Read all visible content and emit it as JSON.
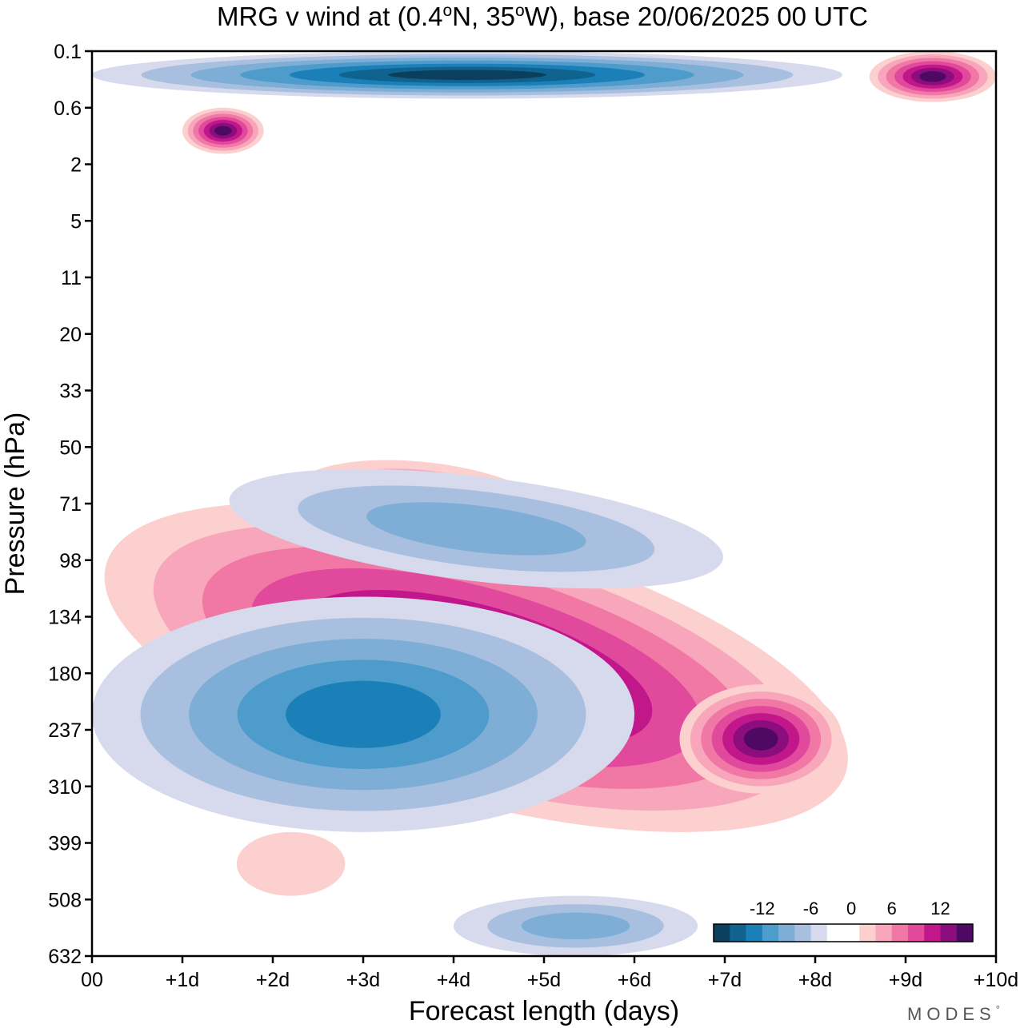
{
  "chart_data": {
    "type": "heatmap",
    "subtype": "filled-contour",
    "title": {
      "prefix": "MRG v wind at (0.4",
      "deg1": "o",
      "mid": "N, 35",
      "deg2": "o",
      "suffix": "W),  base 20/06/2025  00 UTC"
    },
    "xlabel": "Forecast length (days)",
    "ylabel": "Pressure (hPa)",
    "x_ticks": [
      "00",
      "+1d",
      "+2d",
      "+3d",
      "+4d",
      "+5d",
      "+6d",
      "+7d",
      "+8d",
      "+9d",
      "+10d"
    ],
    "x_range_days": [
      0,
      10
    ],
    "y_ticks": [
      "0.1",
      "0.6",
      "2",
      "5",
      "11",
      "20",
      "33",
      "50",
      "71",
      "98",
      "134",
      "180",
      "237",
      "310",
      "399",
      "508",
      "632"
    ],
    "y_scale": "pressure levels, top 0.1 hPa to bottom 632 hPa",
    "grid": false,
    "legend_position": "bottom-right inside plot",
    "colorbar": {
      "tick_labels": [
        "-12",
        "-6",
        "0",
        "6",
        "12"
      ],
      "tick_values": [
        -12,
        -6,
        0,
        6,
        12
      ],
      "levels": [
        -16,
        -14,
        -12,
        -10,
        -8,
        -6,
        -4,
        -2,
        2,
        4,
        6,
        8,
        10,
        12,
        14,
        16
      ],
      "colors": [
        "#0a3f5e",
        "#10628f",
        "#1b80b8",
        "#4d9ccb",
        "#7eaed6",
        "#a8bfdf",
        "#d7d9ec",
        "#ffffff",
        "#ffffff",
        "#fdd0d0",
        "#f8a6bb",
        "#f178a5",
        "#e14a9c",
        "#c2168b",
        "#8c0d7d",
        "#4e0962"
      ]
    },
    "features": [
      {
        "name": "strong positive tilted band",
        "sign": "positive",
        "x_days": [
          0.0,
          8.5
        ],
        "p_hPa": [
          85,
          330
        ],
        "max_abs": 16
      },
      {
        "name": "strong positive core",
        "sign": "positive",
        "x_days": [
          6.5,
          8.3
        ],
        "p_hPa": [
          190,
          320
        ],
        "max_abs": 16
      },
      {
        "name": "negative region below band",
        "sign": "negative",
        "x_days": [
          0.0,
          6.0
        ],
        "p_hPa": [
          120,
          380
        ],
        "max_abs": 12
      },
      {
        "name": "negative upper stratosphere top layer",
        "sign": "negative",
        "x_days": [
          0.0,
          8.3
        ],
        "p_hPa": [
          0.1,
          0.45
        ],
        "max_abs": 16
      },
      {
        "name": "positive upper blob",
        "sign": "positive",
        "x_days": [
          1.0,
          1.9
        ],
        "p_hPa": [
          0.6,
          1.6
        ],
        "max_abs": 16
      },
      {
        "name": "positive top right",
        "sign": "positive",
        "x_days": [
          8.6,
          10.0
        ],
        "p_hPa": [
          0.1,
          0.5
        ],
        "max_abs": 16
      },
      {
        "name": "positive mid band",
        "sign": "positive",
        "x_days": [
          2.2,
          5.2
        ],
        "p_hPa": [
          55,
          95
        ],
        "max_abs": 12
      },
      {
        "name": "negative mid band",
        "sign": "negative",
        "x_days": [
          1.5,
          7.0
        ],
        "p_hPa": [
          60,
          110
        ],
        "max_abs": 8
      },
      {
        "name": "positive lower left blob",
        "sign": "positive",
        "x_days": [
          1.6,
          2.8
        ],
        "p_hPa": [
          380,
          500
        ],
        "max_abs": 4
      },
      {
        "name": "negative bottom blob",
        "sign": "negative",
        "x_days": [
          4.0,
          6.7
        ],
        "p_hPa": [
          500,
          632
        ],
        "max_abs": 8
      }
    ]
  },
  "branding": {
    "text": "MODES",
    "mark": "°"
  }
}
